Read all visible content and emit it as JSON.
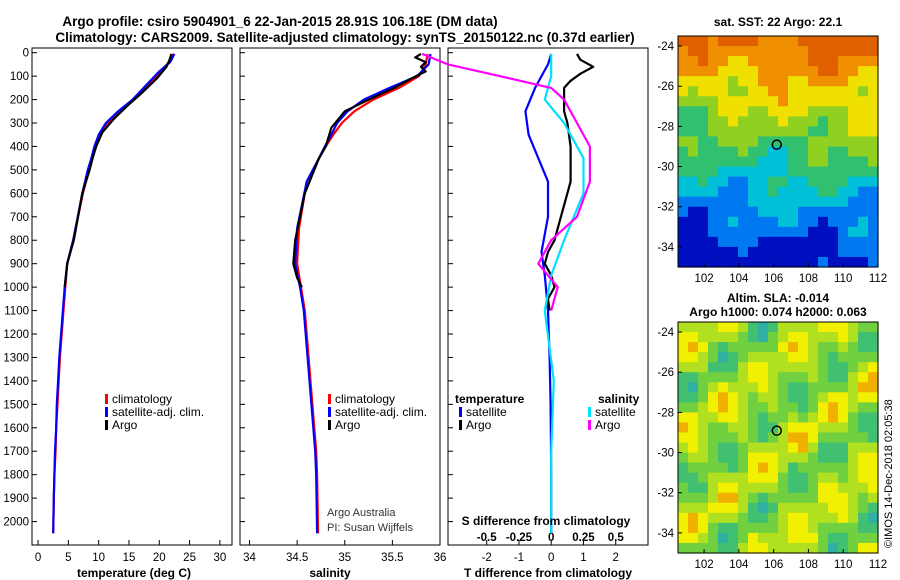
{
  "header": {
    "title_line1": "Argo profile: csiro 5904901_6 22-Jan-2015 28.91S 106.18E (DM data)",
    "title_line2": "Climatology: CARS2009. Satellite-adjusted climatology: synTS_20150122.nc (0.37d earlier)"
  },
  "credit": {
    "line1": "Argo Australia",
    "line2": "PI: Susan Wijffels",
    "stamp": "©IMOS 14-Dec-2018 02:05:38"
  },
  "colors": {
    "climatology": "#ff0000",
    "satellite": "#0000ff",
    "argo": "#000000",
    "sal_satellite": "#00e0ff",
    "sal_argo": "#ff00ff"
  },
  "chart_data": [
    {
      "id": "temperature",
      "type": "line",
      "xlabel": "temperature (deg C)",
      "ylabel": "",
      "xlim": [
        -1,
        32
      ],
      "ylim": [
        2100,
        -20
      ],
      "xticks": [
        0,
        5,
        10,
        15,
        20,
        25,
        30
      ],
      "yticks": [
        0,
        100,
        200,
        300,
        400,
        500,
        600,
        700,
        800,
        900,
        1000,
        1100,
        1200,
        1300,
        1400,
        1500,
        1600,
        1700,
        1800,
        1900,
        2000
      ],
      "legend": [
        "climatology",
        "satellite-adj. clim.",
        "Argo"
      ],
      "series": [
        {
          "name": "climatology",
          "color_key": "climatology",
          "x": [
            22.3,
            21.6,
            20.2,
            18.2,
            15.8,
            13.6,
            11.5,
            10.2,
            9.5,
            9.0,
            8.4,
            7.4,
            5.8,
            4.8,
            4.5,
            4.2,
            3.9,
            3.6,
            3.4,
            3.2,
            3.0,
            2.9,
            2.7,
            2.6,
            2.5
          ],
          "y": [
            5,
            40,
            80,
            140,
            200,
            250,
            300,
            350,
            400,
            450,
            500,
            600,
            800,
            900,
            1000,
            1100,
            1200,
            1300,
            1400,
            1500,
            1600,
            1700,
            1800,
            1900,
            2050
          ]
        },
        {
          "name": "satellite-adj. clim.",
          "color_key": "satellite",
          "x": [
            22.5,
            21.8,
            20.0,
            17.8,
            15.6,
            13.2,
            11.2,
            10.0,
            9.3,
            8.8,
            8.2,
            7.3,
            5.8,
            4.8,
            4.4,
            4.1,
            3.8,
            3.5,
            3.3,
            3.1,
            3.0,
            2.8,
            2.7,
            2.6,
            2.5
          ],
          "y": [
            5,
            40,
            80,
            140,
            200,
            250,
            300,
            350,
            400,
            450,
            500,
            600,
            800,
            900,
            1000,
            1100,
            1200,
            1300,
            1400,
            1500,
            1600,
            1700,
            1800,
            1900,
            2050
          ]
        },
        {
          "name": "Argo",
          "color_key": "argo",
          "x": [
            22.0,
            21.7,
            21.2,
            19.6,
            17.2,
            15.0,
            12.6,
            10.6,
            9.6,
            9.0,
            8.5,
            7.3,
            5.9,
            4.8,
            4.4
          ],
          "y": [
            5,
            30,
            60,
            110,
            170,
            220,
            280,
            340,
            400,
            450,
            500,
            600,
            800,
            900,
            1000
          ]
        }
      ]
    },
    {
      "id": "salinity",
      "type": "line",
      "xlabel": "salinity",
      "ylabel": "",
      "xlim": [
        33.9,
        36.0
      ],
      "ylim": [
        2100,
        -20
      ],
      "xticks": [
        34,
        34.5,
        35,
        35.5,
        36
      ],
      "xticklabels": [
        "34",
        "34.5",
        "35",
        "35.5",
        "36"
      ],
      "legend": [
        "climatology",
        "satellite-adj. clim.",
        "Argo"
      ],
      "series": [
        {
          "name": "climatology",
          "color_key": "climatology",
          "x": [
            35.87,
            35.85,
            35.78,
            35.57,
            35.3,
            35.1,
            34.97,
            34.88,
            34.8,
            34.73,
            34.6,
            34.52,
            34.5,
            34.54,
            34.58,
            34.6,
            34.62,
            34.64,
            34.66,
            34.68,
            34.7,
            34.71,
            34.72
          ],
          "y": [
            5,
            50,
            100,
            150,
            200,
            250,
            300,
            350,
            400,
            450,
            550,
            750,
            900,
            1000,
            1100,
            1200,
            1300,
            1400,
            1500,
            1600,
            1700,
            1800,
            2050
          ]
        },
        {
          "name": "satellite-adj. clim.",
          "color_key": "satellite",
          "x": [
            35.9,
            35.88,
            35.76,
            35.47,
            35.2,
            35.03,
            34.92,
            34.86,
            34.79,
            34.73,
            34.6,
            34.5,
            34.48,
            34.53,
            34.57,
            34.59,
            34.61,
            34.63,
            34.65,
            34.67,
            34.69,
            34.7,
            34.71
          ],
          "y": [
            5,
            50,
            100,
            150,
            200,
            250,
            300,
            350,
            400,
            450,
            550,
            750,
            900,
            1000,
            1100,
            1200,
            1300,
            1400,
            1500,
            1600,
            1700,
            1800,
            2050
          ]
        },
        {
          "name": "Argo",
          "color_key": "argo",
          "x": [
            35.8,
            35.74,
            35.85,
            35.8,
            35.85,
            35.7,
            35.52,
            35.25,
            35.0,
            34.86,
            34.8,
            34.73,
            34.58,
            34.48,
            34.46,
            34.5,
            34.55
          ],
          "y": [
            5,
            20,
            40,
            60,
            80,
            110,
            150,
            200,
            250,
            320,
            400,
            450,
            600,
            800,
            900,
            960,
            1000
          ]
        }
      ]
    },
    {
      "id": "difference",
      "type": "line",
      "xlabel": "T difference from climatology",
      "x2label": "S difference from climatology",
      "ylabel": "",
      "xlim": [
        -3.2,
        3.0
      ],
      "ylim": [
        2100,
        -20
      ],
      "xticks": [
        -2,
        -1,
        0,
        1,
        2
      ],
      "x2ticks": [
        -0.5,
        -0.25,
        0,
        0.25,
        0.5
      ],
      "x2ticklabels": [
        "-0.5",
        "-0.25",
        "0",
        "0.25",
        "0.5"
      ],
      "legend_temperature_title": "temperature",
      "legend_salinity_title": "salinity",
      "legend": [
        "satellite",
        "Argo",
        "satellite",
        "Argo"
      ],
      "series": [
        {
          "name": "satellite",
          "group": "temperature",
          "color_key": "satellite",
          "x": [
            0.0,
            -0.1,
            -0.3,
            -0.5,
            -0.8,
            -0.7,
            -0.4,
            -0.1,
            -0.1,
            -0.3,
            -0.2,
            -0.1,
            -0.05,
            -0.02,
            0.0,
            0.0
          ],
          "y": [
            5,
            50,
            100,
            150,
            250,
            350,
            450,
            550,
            700,
            850,
            950,
            1100,
            1300,
            1500,
            1800,
            2050
          ]
        },
        {
          "name": "Argo",
          "group": "temperature",
          "color_key": "argo",
          "x": [
            0.8,
            0.9,
            1.3,
            0.9,
            0.6,
            0.4,
            0.4,
            0.4,
            0.5,
            0.6,
            0.6,
            0.3,
            0.1,
            -0.1,
            -0.2,
            0.0,
            0.1,
            -0.1,
            -0.05
          ],
          "y": [
            5,
            30,
            60,
            90,
            120,
            150,
            200,
            250,
            300,
            400,
            550,
            700,
            800,
            850,
            900,
            950,
            1000,
            1050,
            1100
          ]
        },
        {
          "name": "satellite",
          "group": "salinity",
          "color_key": "sal_satellite",
          "x": [
            0.0,
            0.0,
            -0.05,
            0.1,
            0.25,
            0.25,
            0.1,
            0.0,
            -0.05,
            0.02,
            0.0,
            0.0
          ],
          "y": [
            5,
            100,
            200,
            300,
            450,
            600,
            800,
            950,
            1100,
            1400,
            1700,
            2050
          ]
        },
        {
          "name": "Argo",
          "group": "salinity",
          "color_key": "sal_argo",
          "x": [
            -1.0,
            -0.8,
            -0.4,
            0.0,
            0.1,
            0.2,
            0.3,
            0.3,
            0.2,
            0.0,
            -0.1,
            0.05,
            0.0
          ],
          "y": [
            5,
            50,
            100,
            150,
            200,
            300,
            400,
            550,
            700,
            800,
            900,
            1000,
            1100
          ]
        }
      ]
    },
    {
      "id": "sst-map",
      "type": "heatmap",
      "title": "sat. SST: 22 Argo: 22.1",
      "xlim": [
        100.5,
        112
      ],
      "ylim": [
        -35,
        -23.5
      ],
      "xticks": [
        102,
        104,
        106,
        108,
        110,
        112
      ],
      "yticks": [
        -24,
        -26,
        -28,
        -30,
        -32,
        -34
      ],
      "marker": {
        "lon": 106.18,
        "lat": -28.91
      },
      "scale": [
        -35,
        -23.5
      ],
      "palette": [
        "#0010c0",
        "#0078f0",
        "#00c0d8",
        "#30c070",
        "#90d020",
        "#f0e000",
        "#f09000",
        "#e06000"
      ]
    },
    {
      "id": "sla-map",
      "type": "heatmap",
      "title_line1": "Altim. SLA: -0.014",
      "title_line2": "Argo h1000: 0.074 h2000: 0.063",
      "xlim": [
        100.5,
        112
      ],
      "ylim": [
        -35,
        -23.5
      ],
      "xticks": [
        102,
        104,
        106,
        108,
        110,
        112
      ],
      "yticks": [
        -24,
        -26,
        -28,
        -30,
        -32,
        -34
      ],
      "marker": {
        "lon": 106.18,
        "lat": -28.91
      },
      "palette": [
        "#30b0a0",
        "#40c070",
        "#70d040",
        "#b0e020",
        "#f0f000",
        "#f0b000",
        "#e08020"
      ]
    }
  ]
}
